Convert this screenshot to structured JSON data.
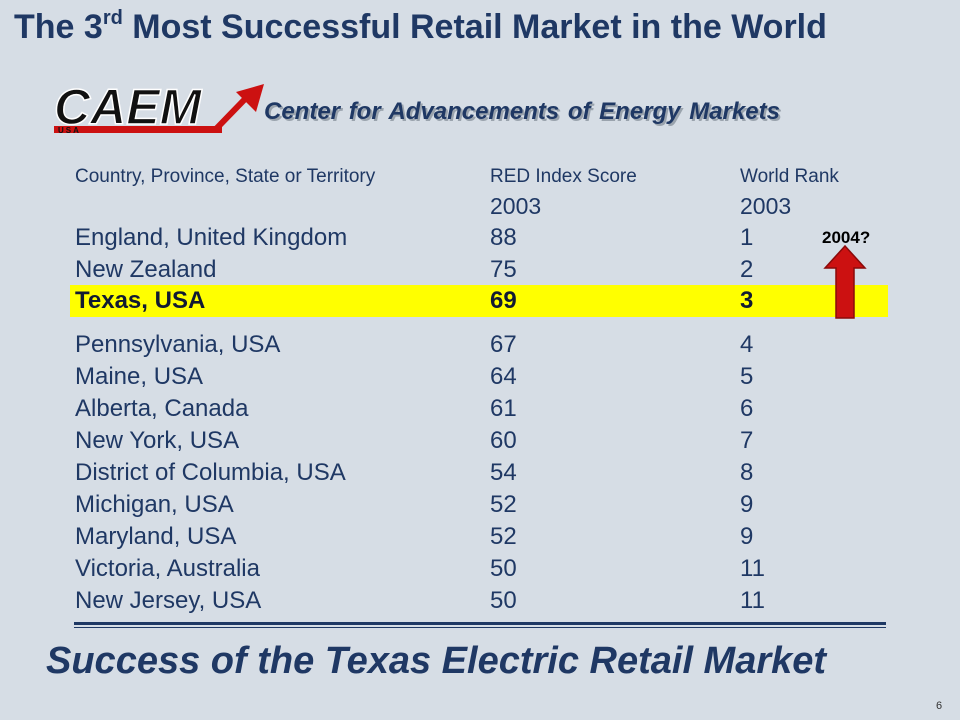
{
  "slide": {
    "title_main": "The 3",
    "title_sup": "rd",
    "title_rest": " Most Successful Retail Market in the World",
    "logo_text": "CAEM",
    "logo_subtext": "USA",
    "logo_caption": "Center for Advancements of Energy Markets",
    "tagline": "Success of the Texas Electric Retail Market",
    "slide_number": "6",
    "badge": "2004?"
  },
  "table": {
    "headers": [
      "Country, Province, State or Territory",
      "RED Index Score",
      "World Rank"
    ],
    "year_row": [
      "",
      "2003",
      "2003"
    ],
    "rows": [
      {
        "name": "England, United Kingdom",
        "score": "88",
        "rank": "1"
      },
      {
        "name": "New Zealand",
        "score": "75",
        "rank": "2"
      },
      {
        "name": "Texas, USA",
        "score": "69",
        "rank": "3"
      },
      {
        "name": "Pennsylvania, USA",
        "score": "67",
        "rank": "4"
      },
      {
        "name": "Maine, USA",
        "score": "64",
        "rank": "5"
      },
      {
        "name": "Alberta, Canada",
        "score": "61",
        "rank": "6"
      },
      {
        "name": "New York, USA",
        "score": "60",
        "rank": "7"
      },
      {
        "name": "District of Columbia, USA",
        "score": "54",
        "rank": "8"
      },
      {
        "name": "Michigan, USA",
        "score": "52",
        "rank": "9"
      },
      {
        "name": "Maryland, USA",
        "score": "52",
        "rank": "9"
      },
      {
        "name": "Victoria, Australia",
        "score": "50",
        "rank": "11"
      },
      {
        "name": "New Jersey, USA",
        "score": "50",
        "rank": "11"
      }
    ]
  },
  "colors": {
    "title": "#1f3864",
    "background": "#d6dde5",
    "highlight": "#ffff00",
    "arrow": "#cc1111"
  },
  "icons": {
    "logo_arrow": "red-up-right-arrow-icon",
    "rank_arrow": "red-up-arrow-icon"
  }
}
